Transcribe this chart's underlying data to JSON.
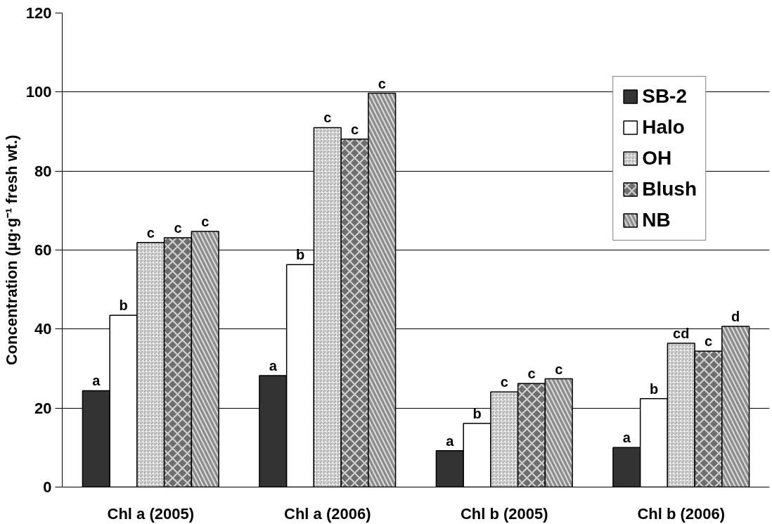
{
  "chart_data": {
    "type": "bar",
    "ylabel": "Concentration (µg·g⁻¹ fresh wt.)",
    "categories": [
      "Chl a (2005)",
      "Chl a (2006)",
      "Chl b (2005)",
      "Chl b (2006)"
    ],
    "series": [
      {
        "name": "SB-2",
        "color": "#333333",
        "values": [
          24.4,
          28.2,
          9.2,
          10.0
        ]
      },
      {
        "name": "Halo",
        "color": "#ffffff",
        "values": [
          43.5,
          56.3,
          16.1,
          22.4
        ]
      },
      {
        "name": "OH",
        "color": "#a6a6a6",
        "values": [
          61.9,
          91.0,
          24.1,
          36.4
        ]
      },
      {
        "name": "Blush",
        "color": "#6e6e6e",
        "values": [
          63.1,
          88.1,
          26.2,
          34.4
        ]
      },
      {
        "name": "NB",
        "color": "#8c8c8c",
        "values": [
          64.7,
          99.7,
          27.4,
          40.7
        ]
      }
    ],
    "ylim": [
      0,
      120
    ],
    "yticks": [
      0,
      20,
      40,
      60,
      80,
      100,
      120
    ],
    "grid": "y",
    "legend": "top right",
    "annotations": [
      "a",
      "b",
      "c",
      "c",
      "c",
      "a",
      "b",
      "c",
      "c",
      "c",
      "a",
      "b",
      "c",
      "c",
      "c",
      "a",
      "b",
      "cd",
      "c",
      "d"
    ]
  }
}
